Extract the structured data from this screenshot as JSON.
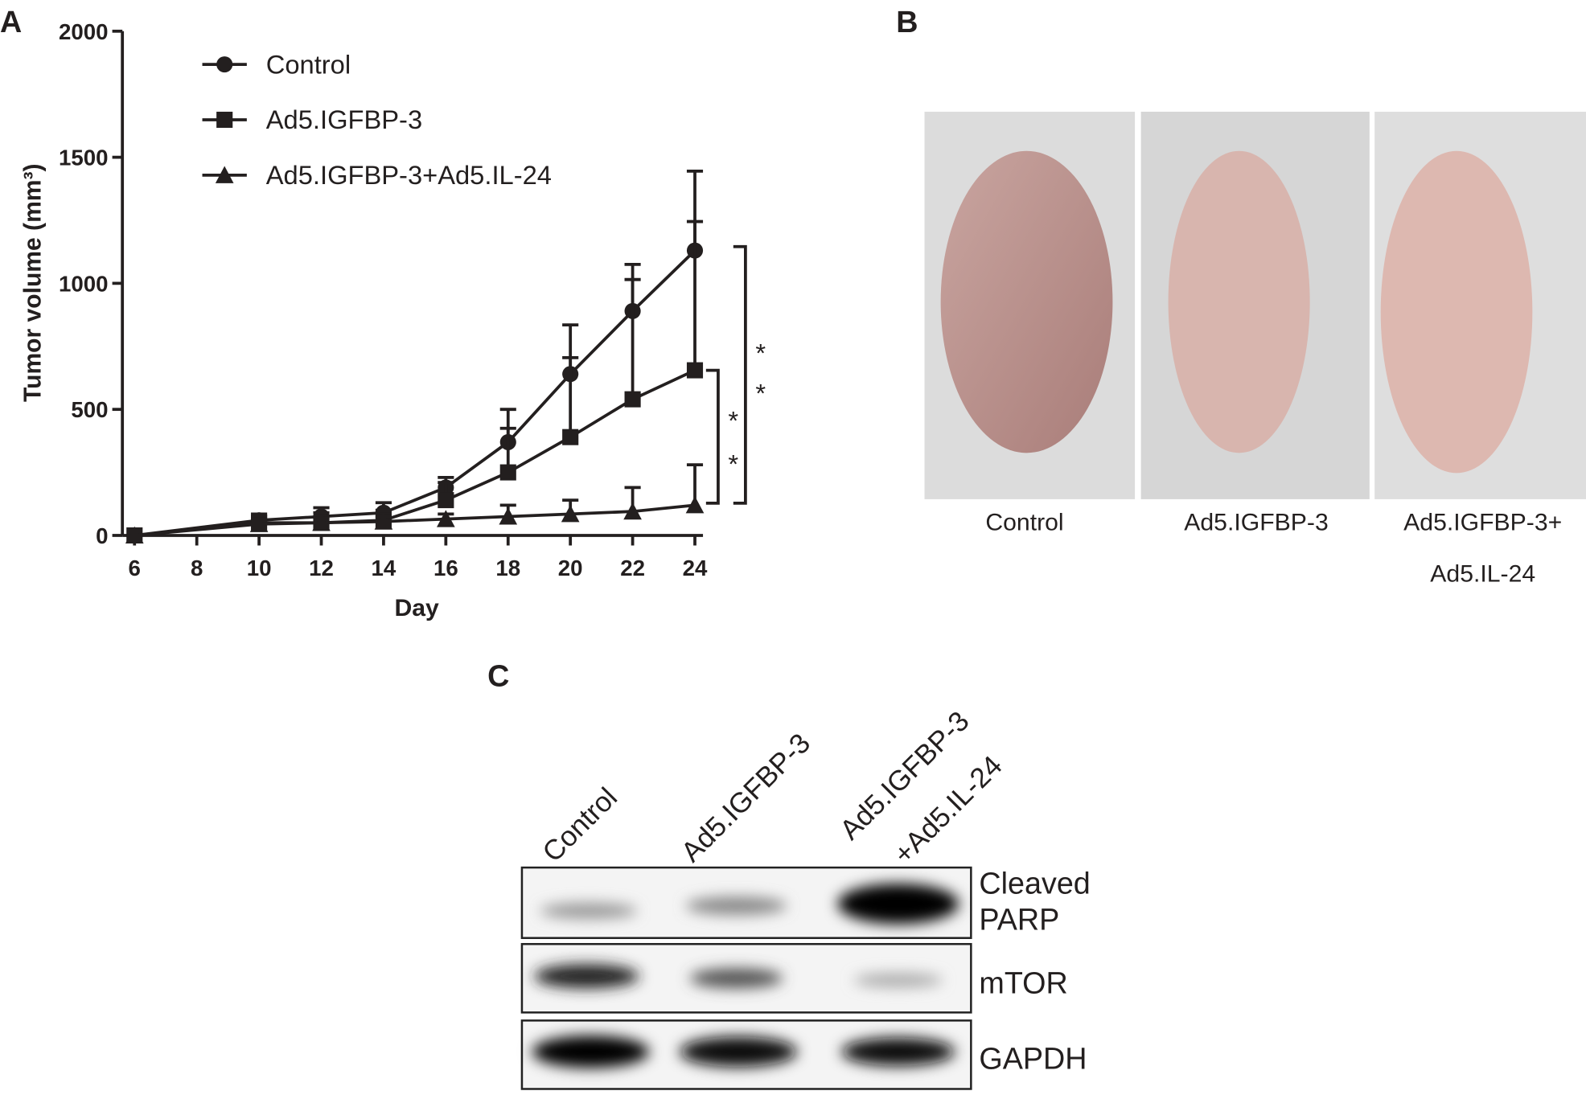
{
  "chart_data": {
    "type": "line",
    "panel_label": "A",
    "x_label": "Day",
    "y_label": "Tumor volume (mm³)",
    "x": [
      6,
      10,
      12,
      14,
      16,
      18,
      20,
      22,
      24
    ],
    "xlim": [
      6,
      24
    ],
    "xticks": [
      6,
      8,
      10,
      12,
      14,
      16,
      18,
      20,
      22,
      24
    ],
    "ylim": [
      0,
      2000
    ],
    "yticks": [
      0,
      500,
      1000,
      1500,
      2000
    ],
    "series": [
      {
        "name": "Control",
        "color": "#231f1f",
        "marker": "circle",
        "values": [
          0,
          60,
          75,
          90,
          190,
          370,
          640,
          890,
          1130
        ],
        "errors": [
          0,
          25,
          35,
          40,
          40,
          130,
          195,
          185,
          315
        ]
      },
      {
        "name": "Ad5.IGFBP-3",
        "color": "#231f1f",
        "marker": "square",
        "values": [
          0,
          50,
          50,
          60,
          140,
          250,
          390,
          540,
          655
        ],
        "errors": [
          0,
          25,
          40,
          40,
          70,
          175,
          315,
          475,
          590
        ]
      },
      {
        "name": "Ad5.IGFBP-3+Ad5.IL-24",
        "color": "#231f1f",
        "marker": "triangle",
        "values": [
          0,
          45,
          50,
          55,
          65,
          75,
          85,
          95,
          120
        ],
        "errors": [
          0,
          20,
          20,
          20,
          20,
          45,
          55,
          95,
          160
        ]
      }
    ],
    "significance": [
      "*",
      "*",
      "*",
      "*"
    ]
  },
  "photos": {
    "panel_label": "B",
    "labels": [
      "Control",
      "Ad5.IGFBP-3",
      "Ad5.IGFBP-3+",
      "Ad5.IL-24"
    ]
  },
  "blot": {
    "panel_label": "C",
    "lanes": [
      "Control",
      "Ad5.IGFBP-3",
      "Ad5.IGFBP-3",
      "+Ad5.IL-24"
    ],
    "rows": [
      "Cleaved",
      "PARP",
      "mTOR",
      "GAPDH"
    ]
  }
}
